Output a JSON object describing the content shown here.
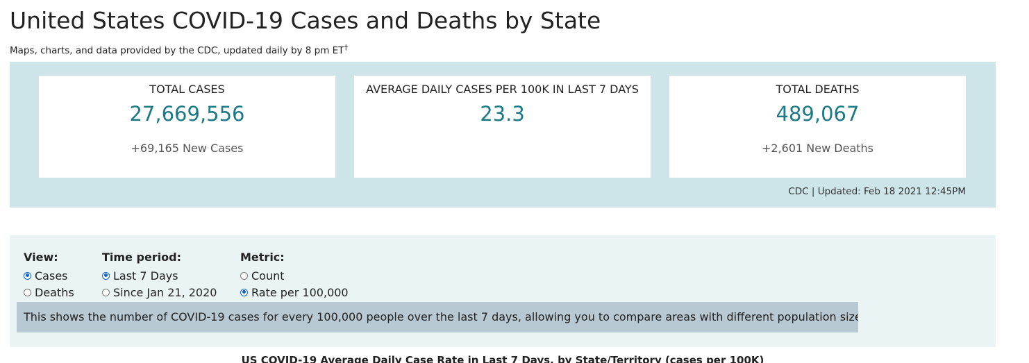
{
  "header": {
    "title": "United States COVID-19 Cases and Deaths by State",
    "subtitle": "Maps, charts, and data provided by the CDC, updated daily by 8 pm ET",
    "subtitle_mark": "†"
  },
  "summary": {
    "cards": [
      {
        "label": "TOTAL CASES",
        "value": "27,669,556",
        "delta": "+69,165 New Cases"
      },
      {
        "label": "AVERAGE DAILY CASES PER 100K IN LAST 7 DAYS",
        "value": "23.3",
        "delta": ""
      },
      {
        "label": "TOTAL DEATHS",
        "value": "489,067",
        "delta": "+2,601 New Deaths"
      }
    ],
    "updated": "CDC | Updated: Feb 18 2021 12:45PM"
  },
  "controls": {
    "view": {
      "heading": "View:",
      "options": [
        {
          "label": "Cases",
          "checked": true
        },
        {
          "label": "Deaths",
          "checked": false
        }
      ]
    },
    "time_period": {
      "heading": "Time period:",
      "options": [
        {
          "label": "Last 7 Days",
          "checked": true
        },
        {
          "label": "Since Jan 21, 2020",
          "checked": false
        }
      ]
    },
    "metric": {
      "heading": "Metric:",
      "options": [
        {
          "label": "Count",
          "checked": false
        },
        {
          "label": "Rate per 100,000",
          "checked": true
        }
      ]
    },
    "explanation": "This shows the number of COVID-19 cases for every 100,000 people over the last 7 days, allowing you to compare areas with different population sizes."
  },
  "chart": {
    "title": "US COVID-19 Average Daily Case Rate in Last 7 Days, by State/Territory (cases per 100K)"
  },
  "colors": {
    "summary_bg": "#cde4e8",
    "controls_bg": "#eaf4f5",
    "explanation_bg": "#b8c9d3",
    "accent_value": "#1b7a86",
    "radio_checked": "#0b63d8"
  }
}
